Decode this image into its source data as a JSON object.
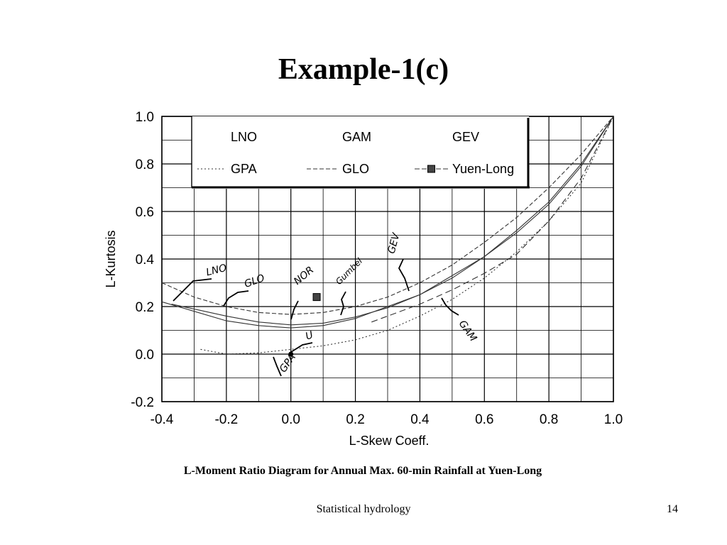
{
  "slide": {
    "title": "Example-1(c)",
    "footer": "Statistical hydrology",
    "page_number": "14"
  },
  "chart_data": {
    "type": "line",
    "xlabel": "L-Skew Coeff.",
    "ylabel": "L-Kurtosis",
    "caption": "L-Moment Ratio Diagram for Annual Max. 60-min Rainfall at Yuen-Long",
    "xlim": [
      -0.4,
      1.0
    ],
    "ylim": [
      -0.2,
      1.0
    ],
    "x_ticks": [
      "-0.4",
      "-0.2",
      "0.0",
      "0.2",
      "0.4",
      "0.6",
      "0.8",
      "1.0"
    ],
    "y_ticks": [
      "1.0",
      "0.8",
      "0.6",
      "0.4",
      "0.2",
      "0.0",
      "-0.2"
    ],
    "x_tick_values": [
      -0.4,
      -0.2,
      0.0,
      0.2,
      0.4,
      0.6,
      0.8,
      1.0
    ],
    "y_tick_values": [
      1.0,
      0.8,
      0.6,
      0.4,
      0.2,
      0.0,
      -0.2
    ],
    "grid": true,
    "legend_position": "top",
    "legend_entries": [
      "LNO",
      "GAM",
      "GEV",
      "GPA",
      "GLO",
      "Yuen-Long"
    ],
    "series": [
      {
        "name": "LNO",
        "x": [
          -0.37,
          -0.3,
          -0.2,
          -0.1,
          0.0,
          0.1,
          0.2,
          0.3,
          0.4,
          0.5,
          0.6,
          0.7,
          0.8,
          0.9,
          1.0
        ],
        "y": [
          0.21,
          0.19,
          0.16,
          0.135,
          0.123,
          0.13,
          0.156,
          0.195,
          0.25,
          0.32,
          0.41,
          0.52,
          0.64,
          0.8,
          1.0
        ]
      },
      {
        "name": "GAM",
        "x": [
          0.25,
          0.3,
          0.4,
          0.5,
          0.6,
          0.7,
          0.8,
          0.9,
          1.0
        ],
        "y": [
          0.135,
          0.16,
          0.21,
          0.27,
          0.34,
          0.42,
          0.56,
          0.74,
          1.0
        ]
      },
      {
        "name": "GEV",
        "x": [
          -0.4,
          -0.3,
          -0.2,
          -0.1,
          0.0,
          0.1,
          0.2,
          0.3,
          0.4,
          0.5,
          0.6,
          0.7,
          0.8,
          0.9,
          1.0
        ],
        "y": [
          0.22,
          0.18,
          0.14,
          0.12,
          0.11,
          0.12,
          0.15,
          0.2,
          0.25,
          0.33,
          0.41,
          0.51,
          0.63,
          0.79,
          1.0
        ]
      },
      {
        "name": "GPA",
        "x": [
          -0.28,
          -0.2,
          -0.1,
          0.0,
          0.1,
          0.2,
          0.3,
          0.4,
          0.5,
          0.6,
          0.7,
          0.8,
          0.9,
          1.0
        ],
        "y": [
          0.02,
          0.0,
          0.005,
          0.02,
          0.035,
          0.06,
          0.1,
          0.16,
          0.23,
          0.32,
          0.43,
          0.56,
          0.72,
          1.0
        ]
      },
      {
        "name": "GLO",
        "x": [
          -0.4,
          -0.3,
          -0.2,
          -0.1,
          0.0,
          0.1,
          0.2,
          0.3,
          0.4,
          0.5,
          0.6,
          0.7,
          0.8,
          0.9,
          1.0
        ],
        "y": [
          0.3,
          0.24,
          0.2,
          0.175,
          0.167,
          0.175,
          0.2,
          0.24,
          0.3,
          0.375,
          0.47,
          0.575,
          0.7,
          0.84,
          1.0
        ]
      },
      {
        "name": "Yuen-Long",
        "x": [
          0.08
        ],
        "y": [
          0.24
        ]
      }
    ],
    "annotations": [
      {
        "text": "LNO",
        "x": -0.26,
        "y": 0.33
      },
      {
        "text": "GLO",
        "x": -0.14,
        "y": 0.28
      },
      {
        "text": "NOR",
        "x": 0.02,
        "y": 0.29
      },
      {
        "text": "Gumbel",
        "x": 0.15,
        "y": 0.29
      },
      {
        "text": "GEV",
        "x": 0.32,
        "y": 0.42
      },
      {
        "text": "GAM",
        "x": 0.52,
        "y": 0.13
      },
      {
        "text": "U",
        "x": 0.05,
        "y": 0.06
      },
      {
        "text": "GPA",
        "x": -0.02,
        "y": -0.08
      }
    ],
    "colors": {
      "ink": "#000000",
      "curve": "#333333",
      "grid": "#000000"
    }
  }
}
